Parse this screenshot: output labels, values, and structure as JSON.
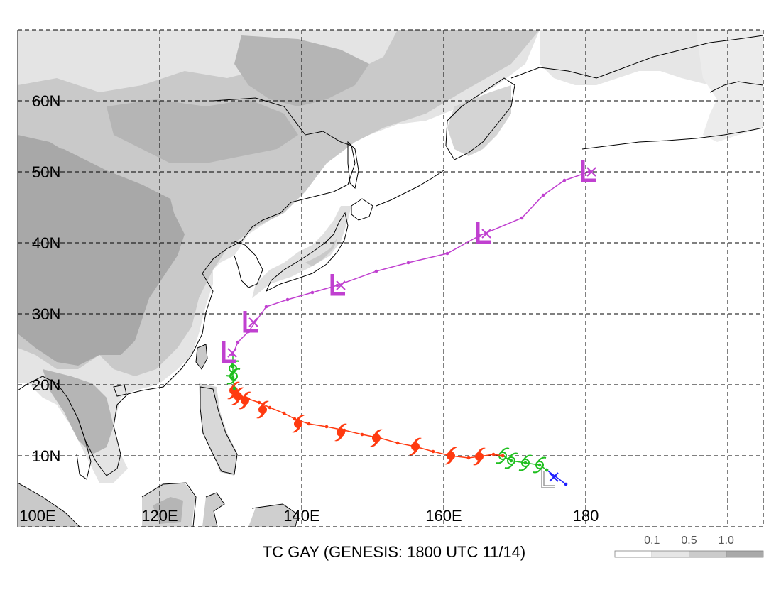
{
  "title": "TC GAY (GENESIS: 1800 UTC 11/14)",
  "map": {
    "lon_range": [
      100,
      205
    ],
    "lat_range": [
      0,
      70
    ],
    "lon_gridlines": [
      100,
      120,
      140,
      160,
      180,
      200
    ],
    "lat_gridlines": [
      10,
      20,
      30,
      40,
      50,
      60
    ],
    "lon_labels": [
      {
        "lon": 100,
        "text": "100E"
      },
      {
        "lon": 120,
        "text": "120E"
      },
      {
        "lon": 140,
        "text": "140E"
      },
      {
        "lon": 160,
        "text": "160E"
      },
      {
        "lon": 180,
        "text": "180"
      }
    ],
    "lat_labels": [
      {
        "lat": 10,
        "text": "10N"
      },
      {
        "lat": 20,
        "text": "20N"
      },
      {
        "lat": 30,
        "text": "30N"
      },
      {
        "lat": 40,
        "text": "40N"
      },
      {
        "lat": 50,
        "text": "50N"
      },
      {
        "lat": 60,
        "text": "60N"
      }
    ],
    "grid_style": "dashed"
  },
  "legend": {
    "labels": [
      "0.1",
      "0.5",
      "1.0"
    ],
    "colors": [
      "#ffffff",
      "#e6e6e6",
      "#cbcbcb",
      "#a9a9a9"
    ]
  },
  "colors": {
    "land_light": "#e4e4e4",
    "land_mid": "#c9c9c9",
    "land_dark": "#a8a8a8",
    "coast": "#000000",
    "grid": "#000000",
    "track_low": "#1f1fff",
    "track_storm": "#1fbf1f",
    "track_typhoon": "#ff3a10",
    "track_extratropical": "#c040d0",
    "low_marker": "#9a9a9a"
  },
  "track": {
    "segments": [
      {
        "stage": "tropical depression",
        "color": "#1f1fff",
        "points": [
          [
            177.2,
            6.0
          ],
          [
            174.5,
            8.0
          ]
        ],
        "symbol_points": [
          [
            175.5,
            7.0
          ]
        ],
        "low_marker": [
          174.8,
          6.5
        ]
      },
      {
        "stage": "tropical storm",
        "color": "#1fbf1f",
        "points": [
          [
            174.5,
            8.0
          ],
          [
            173.5,
            8.7
          ],
          [
            171.5,
            9.0
          ],
          [
            169.5,
            9.3
          ],
          [
            168.3,
            10.0
          ]
        ],
        "symbol_points": [
          [
            173.5,
            8.7
          ],
          [
            171.5,
            9.0
          ],
          [
            169.5,
            9.3
          ],
          [
            168.3,
            10.0
          ]
        ]
      },
      {
        "stage": "typhoon",
        "color": "#ff3a10",
        "points": [
          [
            168.3,
            10.0
          ],
          [
            167,
            10.2
          ],
          [
            165,
            9.9
          ],
          [
            163.5,
            9.7
          ],
          [
            161,
            10
          ],
          [
            158.5,
            10.6
          ],
          [
            156,
            11.3
          ],
          [
            153.5,
            11.8
          ],
          [
            151,
            12.5
          ],
          [
            148.5,
            13
          ],
          [
            146,
            13.6
          ],
          [
            143.5,
            14.1
          ],
          [
            141,
            14.5
          ],
          [
            139,
            15.2
          ],
          [
            137.5,
            16
          ],
          [
            135.5,
            16.8
          ],
          [
            134,
            17.5
          ],
          [
            132.5,
            18
          ],
          [
            131.5,
            18.3
          ],
          [
            130.5,
            19.5
          ]
        ],
        "symbol_points": [
          [
            165,
            9.9
          ],
          [
            161,
            10
          ],
          [
            156,
            11.3
          ],
          [
            150.5,
            12.5
          ],
          [
            145.5,
            13.3
          ],
          [
            139.5,
            14.5
          ],
          [
            134.5,
            16.5
          ],
          [
            132,
            17.8
          ],
          [
            131,
            18.4
          ],
          [
            130.4,
            19.2
          ]
        ]
      },
      {
        "stage": "tropical storm",
        "color": "#1fbf1f",
        "points": [
          [
            130.5,
            19.5
          ],
          [
            130.3,
            21
          ],
          [
            130.3,
            22.5
          ],
          [
            130.3,
            24.3
          ]
        ],
        "symbol_points": [
          [
            130.4,
            21.2
          ],
          [
            130.3,
            22.3
          ]
        ]
      },
      {
        "stage": "extratropical",
        "color": "#c040d0",
        "points": [
          [
            130.3,
            24.3
          ],
          [
            131,
            26
          ],
          [
            132.5,
            27.5
          ],
          [
            135,
            31
          ],
          [
            138,
            32
          ],
          [
            141.5,
            33
          ],
          [
            145,
            34
          ],
          [
            150.5,
            36
          ],
          [
            155,
            37.2
          ],
          [
            160.5,
            38.5
          ],
          [
            165,
            41
          ],
          [
            171,
            43.5
          ],
          [
            174,
            46.7
          ],
          [
            177,
            48.8
          ],
          [
            180.5,
            50
          ]
        ],
        "symbol_points": [
          [
            130.2,
            24.5
          ],
          [
            133.2,
            28.8
          ],
          [
            145.5,
            34
          ],
          [
            166,
            41.3
          ],
          [
            180.8,
            50
          ]
        ]
      }
    ]
  }
}
